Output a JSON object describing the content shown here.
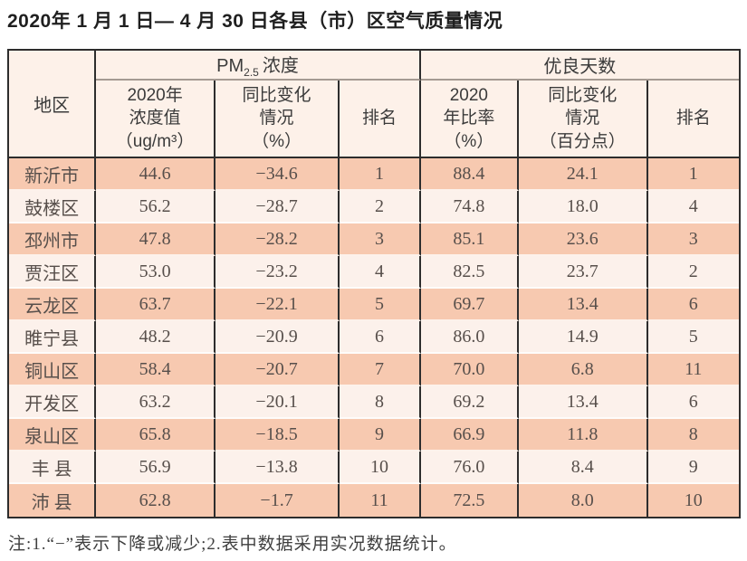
{
  "page_title": "2020年 1 月 1 日— 4 月 30 日各县（市）区空气质量情况",
  "note": "注:1.“−”表示下降或减少;2.表中数据采用实况数据统计。",
  "colors": {
    "row_salmon": "#f7c9b0",
    "row_light": "#fcf1eb",
    "header_bg": "#fdf1e9",
    "border_dark": "#2d2d2d",
    "data_text": "#574f4b"
  },
  "table": {
    "header": {
      "region": "地区",
      "pm_group_prefix": "PM",
      "pm_group_sub": "2.5",
      "pm_group_suffix": "浓度",
      "good_group": "优良天数",
      "pm_value_l1": "2020年",
      "pm_value_l2": "浓度值",
      "pm_value_l3": "（ug/m³）",
      "pm_change_l1": "同比变化",
      "pm_change_l2": "情况",
      "pm_change_l3": "（%）",
      "pm_rank": "排名",
      "good_ratio_l1": "2020",
      "good_ratio_l2": "年比率",
      "good_ratio_l3": "（%）",
      "good_change_l1": "同比变化",
      "good_change_l2": "情况",
      "good_change_l3": "（百分点）",
      "good_rank": "排名"
    },
    "rows": [
      {
        "region": "新沂市",
        "pm_value": "44.6",
        "pm_change": "−34.6",
        "pm_rank": "1",
        "good_ratio": "88.4",
        "good_change": "24.1",
        "good_rank": "1"
      },
      {
        "region": "鼓楼区",
        "pm_value": "56.2",
        "pm_change": "−28.7",
        "pm_rank": "2",
        "good_ratio": "74.8",
        "good_change": "18.0",
        "good_rank": "4"
      },
      {
        "region": "邳州市",
        "pm_value": "47.8",
        "pm_change": "−28.2",
        "pm_rank": "3",
        "good_ratio": "85.1",
        "good_change": "23.6",
        "good_rank": "3"
      },
      {
        "region": "贾汪区",
        "pm_value": "53.0",
        "pm_change": "−23.2",
        "pm_rank": "4",
        "good_ratio": "82.5",
        "good_change": "23.7",
        "good_rank": "2"
      },
      {
        "region": "云龙区",
        "pm_value": "63.7",
        "pm_change": "−22.1",
        "pm_rank": "5",
        "good_ratio": "69.7",
        "good_change": "13.4",
        "good_rank": "6"
      },
      {
        "region": "睢宁县",
        "pm_value": "48.2",
        "pm_change": "−20.9",
        "pm_rank": "6",
        "good_ratio": "86.0",
        "good_change": "14.9",
        "good_rank": "5"
      },
      {
        "region": "铜山区",
        "pm_value": "58.4",
        "pm_change": "−20.7",
        "pm_rank": "7",
        "good_ratio": "70.0",
        "good_change": "6.8",
        "good_rank": "11"
      },
      {
        "region": "开发区",
        "pm_value": "63.2",
        "pm_change": "−20.1",
        "pm_rank": "8",
        "good_ratio": "69.2",
        "good_change": "13.4",
        "good_rank": "6"
      },
      {
        "region": "泉山区",
        "pm_value": "65.8",
        "pm_change": "−18.5",
        "pm_rank": "9",
        "good_ratio": "66.9",
        "good_change": "11.8",
        "good_rank": "8"
      },
      {
        "region": "丰 县",
        "pm_value": "56.9",
        "pm_change": "−13.8",
        "pm_rank": "10",
        "good_ratio": "76.0",
        "good_change": "8.4",
        "good_rank": "9"
      },
      {
        "region": "沛 县",
        "pm_value": "62.8",
        "pm_change": "−1.7",
        "pm_rank": "11",
        "good_ratio": "72.5",
        "good_change": "8.0",
        "good_rank": "10"
      }
    ]
  },
  "chart_data": {
    "type": "table",
    "title": "2020年1月1日—4月30日各县（市）区空气质量情况",
    "columns": [
      "地区",
      "PM2.5浓度 2020年浓度值（ug/m³）",
      "PM2.5浓度 同比变化情况（%）",
      "PM2.5浓度 排名",
      "优良天数 2020年比率（%）",
      "优良天数 同比变化情况（百分点）",
      "优良天数 排名"
    ],
    "rows": [
      [
        "新沂市",
        44.6,
        -34.6,
        1,
        88.4,
        24.1,
        1
      ],
      [
        "鼓楼区",
        56.2,
        -28.7,
        2,
        74.8,
        18.0,
        4
      ],
      [
        "邳州市",
        47.8,
        -28.2,
        3,
        85.1,
        23.6,
        3
      ],
      [
        "贾汪区",
        53.0,
        -23.2,
        4,
        82.5,
        23.7,
        2
      ],
      [
        "云龙区",
        63.7,
        -22.1,
        5,
        69.7,
        13.4,
        6
      ],
      [
        "睢宁县",
        48.2,
        -20.9,
        6,
        86.0,
        14.9,
        5
      ],
      [
        "铜山区",
        58.4,
        -20.7,
        7,
        70.0,
        6.8,
        11
      ],
      [
        "开发区",
        63.2,
        -20.1,
        8,
        69.2,
        13.4,
        6
      ],
      [
        "泉山区",
        65.8,
        -18.5,
        9,
        66.9,
        11.8,
        8
      ],
      [
        "丰县",
        56.9,
        -13.8,
        10,
        76.0,
        8.4,
        9
      ],
      [
        "沛县",
        62.8,
        -1.7,
        11,
        72.5,
        8.0,
        10
      ]
    ],
    "footnote": "注:1.“−”表示下降或减少;2.表中数据采用实况数据统计。"
  }
}
